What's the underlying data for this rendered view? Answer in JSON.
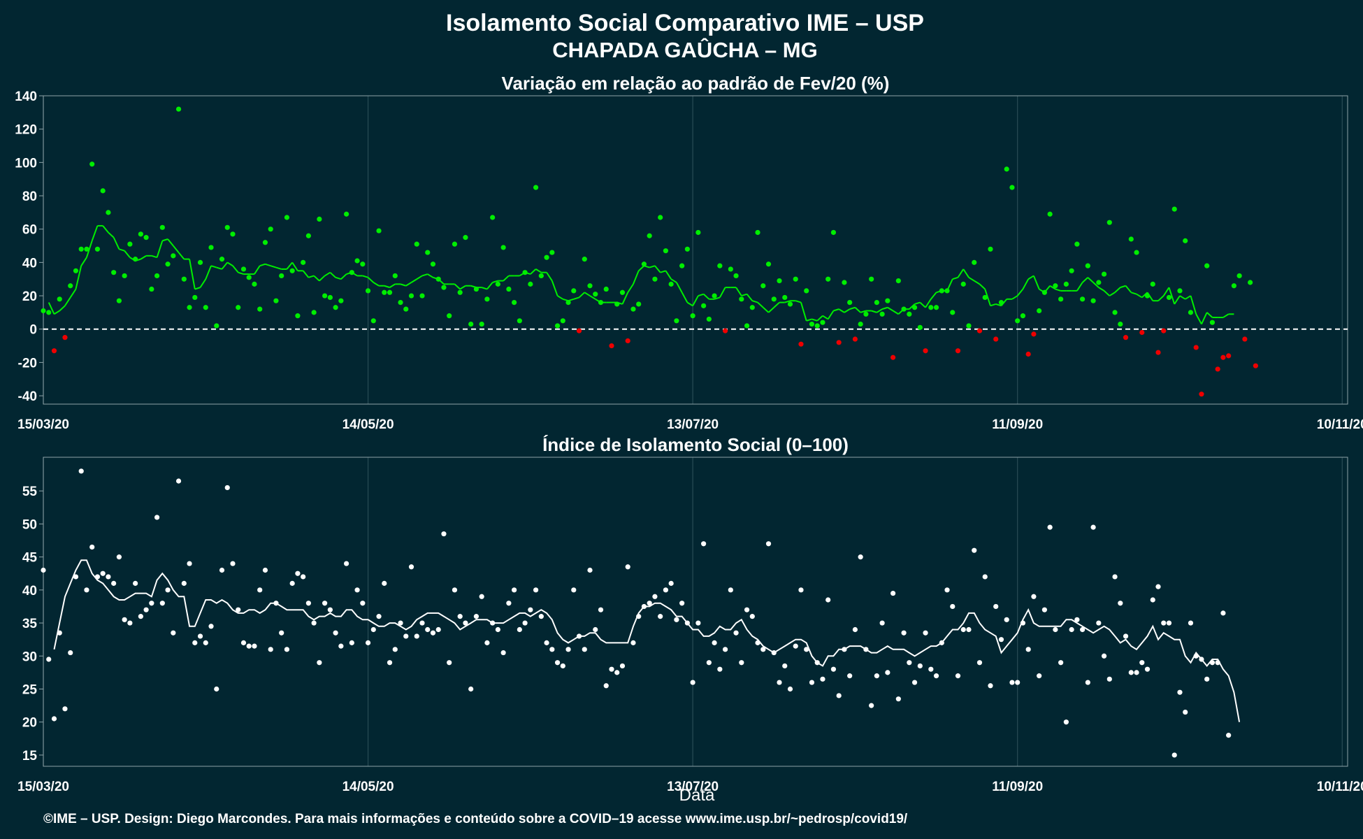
{
  "figure": {
    "title_line1": "Isolamento Social Comparativo IME – USP",
    "title_line2": "CHAPADA GAÛCHA – MG",
    "xlabel": "Data",
    "footer": "©IME – USP. Design: Diego Marcondes. Para mais informações e conteúdo sobre a COVID–19 acesse www.ime.usp.br/~pedrosp/covid19/",
    "colors": {
      "background": "#022631",
      "positive": "#00ee00",
      "negative": "#ee0000",
      "index": "#ffffff",
      "zero_line": "#ffffff"
    }
  },
  "chart_data": [
    {
      "type": "scatter",
      "title": "Variação em relação ao padrão de Fev/20 (%)",
      "xlabel": "",
      "ylabel": "",
      "x_start": "15/03/20",
      "x_end": "11/11/20",
      "x_ticks": [
        "15/03/20",
        "14/05/20",
        "13/07/20",
        "11/09/20",
        "10/11/20"
      ],
      "x_range": [
        "15/03/20",
        "11/11/20"
      ],
      "ylim": [
        -45,
        140
      ],
      "y_ticks": [
        -40,
        -20,
        0,
        20,
        40,
        60,
        80,
        100,
        120,
        140
      ],
      "grid": true,
      "reference_line": 0,
      "color_rule": "points and moving-average segments are green when the value is above 0 and red otherwise",
      "series": [
        {
          "kind": "points",
          "values": [
            11,
            10,
            -13,
            18,
            -5,
            26,
            35,
            48,
            48,
            99,
            48,
            83,
            70,
            34,
            17,
            32,
            51,
            42,
            57,
            55,
            24,
            32,
            61,
            39,
            44,
            132,
            30,
            13,
            19,
            40,
            13,
            49,
            2,
            42,
            61,
            57,
            13,
            36,
            31,
            27,
            12,
            52,
            60,
            17,
            32,
            67,
            35,
            8,
            40,
            56,
            10,
            66,
            20,
            19,
            13,
            17,
            69,
            34,
            41,
            39,
            23,
            5,
            59,
            22,
            22,
            32,
            16,
            12,
            20,
            51,
            20,
            46,
            39,
            30,
            25,
            8,
            51,
            22,
            55,
            3,
            24,
            3,
            18,
            67,
            27,
            49,
            24,
            16,
            5,
            34,
            27,
            85,
            32,
            43,
            46,
            2,
            5,
            16,
            23,
            -1,
            42,
            26,
            21,
            16,
            24,
            -10,
            15,
            22,
            -7,
            12,
            15,
            39,
            56,
            30,
            67,
            47,
            27,
            5,
            38,
            48,
            8,
            58,
            14,
            6,
            20,
            38,
            -1,
            36,
            32,
            18,
            2,
            13,
            58,
            26,
            39,
            18,
            29,
            19,
            15,
            30,
            -9,
            23,
            3,
            2,
            4,
            30,
            58,
            -8,
            28,
            16,
            -6,
            3,
            9,
            30,
            16,
            9,
            17,
            -17,
            29,
            12,
            9,
            13,
            1,
            -13,
            13,
            13,
            23,
            23,
            10,
            -13,
            27,
            2,
            40,
            -1,
            19,
            48,
            -6,
            16,
            96,
            85,
            5,
            8,
            -15,
            -3,
            11,
            22,
            69,
            26,
            18,
            27,
            35,
            51,
            18,
            38,
            17,
            28,
            33,
            64,
            10,
            3,
            -5,
            54,
            46,
            -2,
            20,
            27,
            -14,
            -1,
            19,
            72,
            23,
            53,
            10,
            -11,
            -39,
            38,
            4,
            -24,
            -17,
            -16,
            26,
            32,
            -6,
            28,
            -22
          ]
        },
        {
          "kind": "moving-average",
          "values": [
            16,
            9,
            11,
            14,
            19,
            24,
            38,
            43,
            53,
            62,
            62,
            58,
            55,
            48,
            47,
            43,
            41,
            42,
            44,
            44,
            43,
            53,
            54,
            50,
            46,
            42,
            42,
            24,
            25,
            30,
            38,
            37,
            36,
            40,
            38,
            34,
            33,
            33,
            33,
            38,
            39,
            38,
            37,
            36,
            36,
            40,
            35,
            35,
            31,
            32,
            29,
            32,
            34,
            31,
            30,
            33,
            34,
            32,
            32,
            31,
            28,
            26,
            26,
            25,
            27,
            27,
            26,
            28,
            30,
            32,
            33,
            31,
            30,
            27,
            27,
            27,
            24,
            26,
            26,
            25,
            25,
            24,
            28,
            29,
            29,
            32,
            32,
            32,
            34,
            33,
            36,
            34,
            34,
            29,
            20,
            18,
            17,
            18,
            19,
            22,
            20,
            18,
            16,
            16,
            16,
            16,
            15,
            22,
            27,
            35,
            38,
            37,
            38,
            34,
            35,
            30,
            28,
            22,
            16,
            14,
            20,
            21,
            18,
            18,
            19,
            25,
            25,
            25,
            20,
            21,
            17,
            16,
            13,
            10,
            13,
            16,
            16,
            17,
            17,
            16,
            5,
            6,
            5,
            8,
            6,
            11,
            12,
            10,
            12,
            13,
            10,
            11,
            11,
            10,
            12,
            13,
            11,
            9,
            12,
            12,
            15,
            16,
            13,
            18,
            22,
            23,
            23,
            30,
            31,
            36,
            31,
            29,
            27,
            24,
            14,
            15,
            14,
            18,
            18,
            20,
            24,
            30,
            32,
            24,
            22,
            26,
            24,
            23,
            23,
            23,
            23,
            28,
            31,
            28,
            25,
            23,
            20,
            22,
            25,
            26,
            22,
            21,
            19,
            22,
            17,
            17,
            20,
            25,
            15,
            20,
            18,
            20,
            9,
            3,
            10,
            7,
            7,
            7,
            9,
            9
          ]
        }
      ]
    },
    {
      "type": "scatter",
      "title": "Índice de Isolamento Social (0–100)",
      "xlabel": "Data",
      "ylabel": "",
      "x_start": "15/03/20",
      "x_end": "11/11/20",
      "x_ticks": [
        "15/03/20",
        "14/05/20",
        "13/07/20",
        "11/09/20",
        "10/11/20"
      ],
      "x_range": [
        "15/03/20",
        "11/11/20"
      ],
      "ylim": [
        13.3,
        60.1
      ],
      "y_ticks": [
        15,
        20,
        25,
        30,
        35,
        40,
        45,
        50,
        55
      ],
      "grid": true,
      "series": [
        {
          "kind": "points",
          "values": [
            43,
            29.5,
            20.5,
            33.5,
            22,
            30.5,
            42,
            58,
            40,
            46.5,
            42,
            42.5,
            42,
            41,
            45,
            35.5,
            35,
            41,
            36,
            37,
            38,
            51,
            38,
            40,
            33.5,
            56.5,
            41,
            44,
            32,
            33,
            32,
            34.5,
            25,
            43,
            55.5,
            44,
            37,
            32,
            31.5,
            31.5,
            40,
            43,
            31,
            38,
            33.5,
            31,
            41,
            42.5,
            42,
            38,
            35,
            29,
            38,
            37,
            33.5,
            31.5,
            44,
            32,
            40,
            38,
            32,
            34,
            36,
            41,
            29,
            31,
            35,
            33,
            43.5,
            33,
            35,
            34,
            33.5,
            34,
            48.5,
            29,
            40,
            36,
            35,
            25,
            36,
            39,
            32,
            35,
            34,
            30.5,
            38,
            40,
            34,
            35,
            37,
            40,
            36,
            32,
            31,
            29,
            28.5,
            31,
            40,
            33,
            31,
            43,
            34,
            37,
            25.5,
            28,
            27.5,
            28.5,
            43.5,
            32,
            36,
            37.5,
            38,
            39,
            36,
            40,
            41,
            35.5,
            38,
            35,
            26,
            35,
            47,
            29,
            32,
            28,
            31,
            40,
            33.5,
            29,
            37,
            36,
            32,
            31,
            47,
            30.5,
            26,
            28.5,
            25,
            31.5,
            40,
            31,
            26,
            29,
            26.5,
            38.5,
            28,
            24,
            31,
            27,
            34,
            45,
            31,
            22.5,
            27,
            35,
            27.5,
            39.5,
            23.5,
            33.5,
            29,
            26,
            28.5,
            33.5,
            28,
            27,
            32,
            40,
            37.5,
            27,
            34,
            34,
            46,
            29,
            42,
            25.5,
            37.5,
            32.5,
            35.5,
            26,
            26,
            35,
            31,
            39,
            27,
            37,
            49.5,
            34,
            29,
            20,
            34,
            35.5,
            34,
            26,
            49.5,
            35,
            30,
            26.5,
            42,
            38,
            33,
            27.5,
            27.5,
            29,
            28,
            38.5,
            40.5,
            35,
            35,
            15,
            24.5,
            21.5,
            35,
            30,
            29.5,
            26.5,
            29,
            29,
            36.5,
            18
          ]
        },
        {
          "kind": "moving-average",
          "values": [
            31,
            35,
            39,
            41,
            43,
            44.5,
            44.5,
            42.5,
            41.5,
            41,
            40,
            39,
            38.5,
            38.5,
            39,
            39.5,
            39.5,
            39.5,
            39,
            41.5,
            42.5,
            41.5,
            40,
            39,
            39,
            34.5,
            34.5,
            36.5,
            38.5,
            38.5,
            38,
            38.5,
            38,
            37,
            36.5,
            36.5,
            37,
            37,
            36.5,
            37,
            38,
            38,
            37.5,
            37,
            37,
            37,
            37,
            36,
            35.5,
            36,
            36,
            36.5,
            36,
            36,
            37,
            37,
            36,
            35.5,
            35.5,
            35,
            34.5,
            34.5,
            35,
            35,
            34.5,
            34,
            34.5,
            35.5,
            36,
            36.5,
            36.5,
            36.5,
            36,
            35.5,
            35,
            34,
            34.5,
            35,
            35.5,
            35.5,
            35.5,
            35,
            35,
            35,
            35.5,
            36,
            36.5,
            36.5,
            36,
            36.5,
            37,
            36.5,
            35.5,
            33.5,
            32.5,
            32,
            32.5,
            33,
            33,
            33.5,
            33.5,
            32.5,
            32,
            32,
            32,
            32,
            32,
            34.5,
            36.5,
            37.5,
            37.5,
            38,
            38,
            37.5,
            37,
            36,
            36,
            35,
            34,
            34,
            33,
            33,
            33.5,
            34.5,
            34,
            34,
            35,
            35.5,
            34,
            33,
            32.5,
            31.5,
            31,
            30.5,
            31,
            31.5,
            32,
            32.5,
            32.5,
            32,
            30,
            29,
            28.5,
            30,
            30,
            31,
            31,
            31.5,
            31.5,
            31.5,
            31,
            30.5,
            30.5,
            31,
            31.5,
            31,
            31,
            31,
            30.5,
            30,
            30.5,
            31,
            31.5,
            31.5,
            32,
            33,
            34,
            34,
            35,
            36.5,
            36.5,
            35,
            34,
            33.5,
            33,
            30.5,
            31.5,
            32.5,
            33.5,
            35.5,
            37,
            35,
            34.5,
            34.5,
            34.5,
            34.5,
            34.5,
            35.5,
            35.5,
            35,
            34.5,
            34,
            33.5,
            34,
            34.5,
            34,
            33,
            32,
            32.5,
            31.5,
            31,
            32,
            33,
            34.5,
            32.5,
            33.5,
            33,
            32.5,
            32.5,
            30,
            29,
            30.5,
            29.5,
            28.5,
            29.5,
            29.5,
            28,
            27,
            24.5,
            20
          ]
        }
      ]
    }
  ]
}
